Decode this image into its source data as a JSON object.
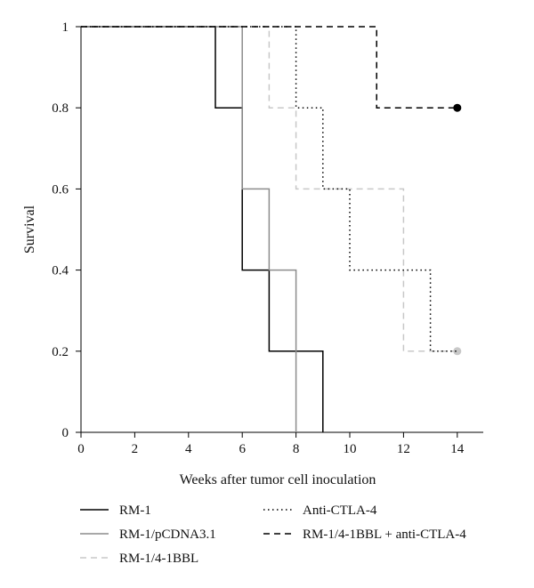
{
  "chart_data": {
    "type": "line",
    "step": true,
    "title": "",
    "xlabel": "Weeks after tumor cell inoculation",
    "ylabel": "Survival",
    "xlim": [
      0,
      15
    ],
    "ylim": [
      0,
      1
    ],
    "xticks": [
      0,
      2,
      4,
      6,
      8,
      10,
      12,
      14
    ],
    "yticks": [
      0,
      0.2,
      0.4,
      0.6,
      0.8,
      1
    ],
    "ytick_labels": [
      "0",
      "0.2",
      "0.4",
      "0.6",
      "0.8",
      "1"
    ],
    "grid": false,
    "legend_position": "bottom",
    "series": [
      {
        "name": "RM-1",
        "color": "#000000",
        "style": "solid",
        "x": [
          0,
          5,
          6,
          7,
          9
        ],
        "y": [
          1,
          0.8,
          0.4,
          0.2,
          0
        ],
        "end_marker": false
      },
      {
        "name": "RM-1/pCDNA3.1",
        "color": "#8c8c8c",
        "style": "solid",
        "x": [
          0,
          6,
          7,
          8
        ],
        "y": [
          1,
          0.6,
          0.4,
          0
        ],
        "end_marker": false
      },
      {
        "name": "RM-1/4-1BBL",
        "color": "#c8c8c8",
        "style": "dashed",
        "x": [
          0,
          7,
          8,
          12,
          14
        ],
        "y": [
          1,
          0.8,
          0.6,
          0.2,
          0.2
        ],
        "end_marker": true
      },
      {
        "name": "Anti-CTLA-4",
        "color": "#000000",
        "style": "dotted",
        "x": [
          0,
          8,
          9,
          10,
          13,
          14
        ],
        "y": [
          1,
          0.8,
          0.6,
          0.4,
          0.2,
          0.2
        ],
        "end_marker": false
      },
      {
        "name": "RM-1/4-1BBL + anti-CTLA-4",
        "color": "#000000",
        "style": "dashed",
        "x": [
          0,
          11,
          14
        ],
        "y": [
          1,
          0.8,
          0.8
        ],
        "end_marker": true
      }
    ]
  }
}
